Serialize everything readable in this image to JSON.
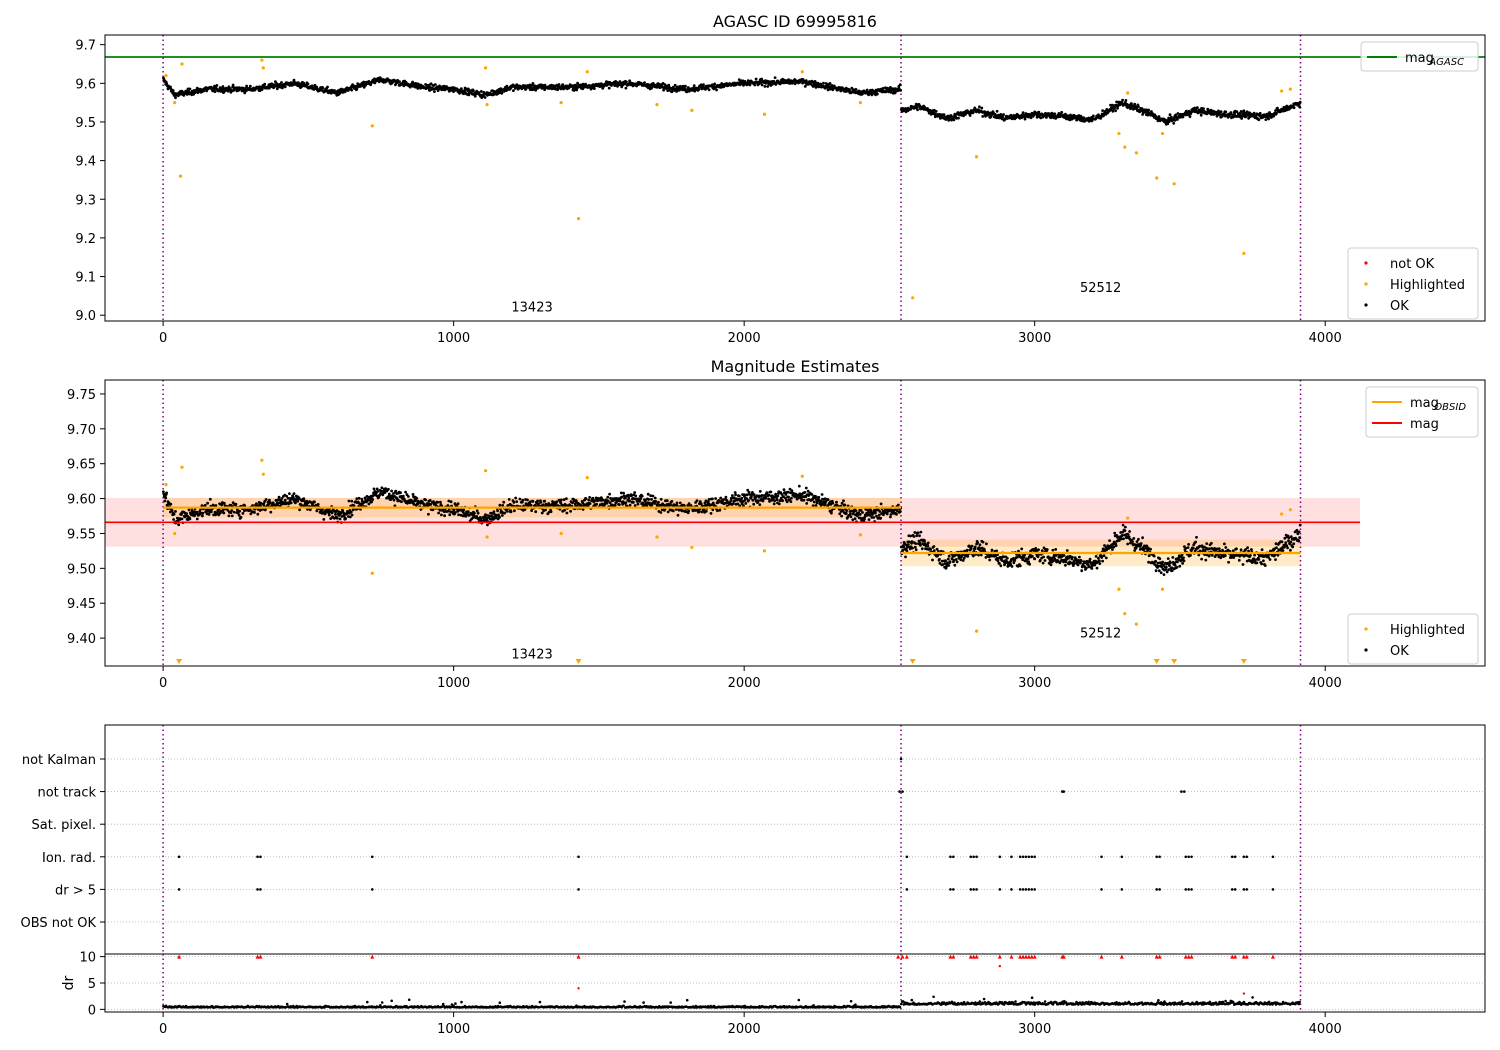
{
  "chart_data": [
    {
      "type": "scatter",
      "title": "AGASC ID 69995816",
      "xlim": [
        -200,
        4550
      ],
      "ylim": [
        8.985,
        9.725
      ],
      "xticks": [
        0,
        1000,
        2000,
        3000,
        4000
      ],
      "yticks": [
        9.0,
        9.1,
        9.2,
        9.3,
        9.4,
        9.5,
        9.6,
        9.7
      ],
      "ytick_decimals": 1,
      "grid": false,
      "legend_upper": {
        "placement": "upper-right",
        "entries": [
          {
            "label": "mag",
            "sub": "AGASC",
            "color": "#008000"
          }
        ]
      },
      "legend_lower": {
        "placement": "lower-right",
        "entries": [
          {
            "label": "not OK",
            "color": "#ff0000"
          },
          {
            "label": "Highlighted",
            "color": "#ffa500"
          },
          {
            "label": "OK",
            "color": "#000000"
          }
        ]
      },
      "obs_boundaries": [
        0,
        2540,
        3915
      ],
      "obs_labels": [
        {
          "text": "13423",
          "x": 1270,
          "y": 9.01
        },
        {
          "text": "52512",
          "x": 3227,
          "y": 9.06
        }
      ],
      "mag_agasc": 9.668,
      "ok_segments": [
        {
          "x0": 0,
          "x1": 2540,
          "wave": [
            [
              0,
              9.61
            ],
            [
              40,
              9.57
            ],
            [
              150,
              9.585
            ],
            [
              300,
              9.585
            ],
            [
              450,
              9.6
            ],
            [
              600,
              9.575
            ],
            [
              750,
              9.61
            ],
            [
              900,
              9.59
            ],
            [
              1000,
              9.585
            ],
            [
              1110,
              9.57
            ],
            [
              1200,
              9.59
            ],
            [
              1400,
              9.59
            ],
            [
              1600,
              9.6
            ],
            [
              1800,
              9.585
            ],
            [
              2000,
              9.6
            ],
            [
              2200,
              9.605
            ],
            [
              2400,
              9.575
            ],
            [
              2540,
              9.585
            ]
          ],
          "noise": 0.007
        },
        {
          "x0": 2540,
          "x1": 3915,
          "wave": [
            [
              2540,
              9.53
            ],
            [
              2600,
              9.54
            ],
            [
              2700,
              9.51
            ],
            [
              2800,
              9.53
            ],
            [
              2900,
              9.51
            ],
            [
              3000,
              9.52
            ],
            [
              3100,
              9.515
            ],
            [
              3200,
              9.505
            ],
            [
              3300,
              9.55
            ],
            [
              3400,
              9.52
            ],
            [
              3450,
              9.5
            ],
            [
              3550,
              9.53
            ],
            [
              3650,
              9.52
            ],
            [
              3800,
              9.515
            ],
            [
              3915,
              9.55
            ]
          ],
          "noise": 0.008
        }
      ],
      "highlighted": [
        [
          10,
          9.62
        ],
        [
          60,
          9.36
        ],
        [
          40,
          9.55
        ],
        [
          65,
          9.65
        ],
        [
          340,
          9.66
        ],
        [
          345,
          9.64
        ],
        [
          720,
          9.49
        ],
        [
          1110,
          9.64
        ],
        [
          1115,
          9.545
        ],
        [
          1430,
          9.25
        ],
        [
          1460,
          9.63
        ],
        [
          1370,
          9.55
        ],
        [
          1700,
          9.545
        ],
        [
          1820,
          9.53
        ],
        [
          2070,
          9.52
        ],
        [
          2200,
          9.63
        ],
        [
          2400,
          9.55
        ],
        [
          2580,
          9.045
        ],
        [
          2800,
          9.41
        ],
        [
          3290,
          9.47
        ],
        [
          3310,
          9.435
        ],
        [
          3320,
          9.575
        ],
        [
          3350,
          9.42
        ],
        [
          3420,
          9.355
        ],
        [
          3480,
          9.34
        ],
        [
          3440,
          9.47
        ],
        [
          3720,
          9.16
        ],
        [
          3850,
          9.58
        ],
        [
          3880,
          9.585
        ]
      ]
    },
    {
      "type": "scatter",
      "title": "Magnitude Estimates",
      "xlim": [
        -200,
        4550
      ],
      "ylim": [
        9.36,
        9.77
      ],
      "xticks": [
        0,
        1000,
        2000,
        3000,
        4000
      ],
      "yticks": [
        9.4,
        9.45,
        9.5,
        9.55,
        9.6,
        9.65,
        9.7,
        9.75
      ],
      "ytick_decimals": 2,
      "grid": false,
      "legend_upper": {
        "placement": "upper-right",
        "entries": [
          {
            "label": "mag",
            "sub": "OBSID",
            "color": "#ffa500"
          },
          {
            "label": "mag",
            "sub": "",
            "color": "#ff0000"
          }
        ]
      },
      "legend_lower": {
        "placement": "lower-right",
        "entries": [
          {
            "label": "Highlighted",
            "color": "#ffa500"
          },
          {
            "label": "OK",
            "color": "#000000"
          }
        ]
      },
      "obs_boundaries": [
        0,
        2540,
        3915
      ],
      "obs_labels": [
        {
          "text": "13423",
          "x": 1270,
          "y": 9.371
        },
        {
          "text": "52512",
          "x": 3227,
          "y": 9.401
        }
      ],
      "mag": {
        "value": 9.566,
        "band": [
          9.531,
          9.601
        ],
        "x0": -200,
        "x1": 4120
      },
      "mag_obsid": [
        {
          "x0": 0,
          "x1": 2540,
          "value": 9.587,
          "band": [
            9.573,
            9.601
          ]
        },
        {
          "x0": 2540,
          "x1": 3915,
          "value": 9.522,
          "band": [
            9.503,
            9.541
          ]
        }
      ],
      "ok_segments": [
        {
          "x0": 0,
          "x1": 2540,
          "wave": [
            [
              0,
              9.61
            ],
            [
              40,
              9.57
            ],
            [
              150,
              9.585
            ],
            [
              300,
              9.585
            ],
            [
              450,
              9.6
            ],
            [
              600,
              9.575
            ],
            [
              750,
              9.61
            ],
            [
              900,
              9.59
            ],
            [
              1000,
              9.585
            ],
            [
              1110,
              9.57
            ],
            [
              1200,
              9.59
            ],
            [
              1400,
              9.59
            ],
            [
              1600,
              9.6
            ],
            [
              1800,
              9.585
            ],
            [
              2000,
              9.6
            ],
            [
              2200,
              9.605
            ],
            [
              2400,
              9.575
            ],
            [
              2540,
              9.585
            ]
          ],
          "noise": 0.009
        },
        {
          "x0": 2540,
          "x1": 3915,
          "wave": [
            [
              2540,
              9.53
            ],
            [
              2600,
              9.54
            ],
            [
              2700,
              9.51
            ],
            [
              2800,
              9.53
            ],
            [
              2900,
              9.51
            ],
            [
              3000,
              9.52
            ],
            [
              3100,
              9.515
            ],
            [
              3200,
              9.505
            ],
            [
              3300,
              9.55
            ],
            [
              3400,
              9.52
            ],
            [
              3450,
              9.5
            ],
            [
              3550,
              9.53
            ],
            [
              3650,
              9.52
            ],
            [
              3800,
              9.515
            ],
            [
              3915,
              9.55
            ]
          ],
          "noise": 0.011
        }
      ],
      "highlighted": [
        [
          10,
          9.62
        ],
        [
          40,
          9.55
        ],
        [
          65,
          9.645
        ],
        [
          340,
          9.655
        ],
        [
          345,
          9.635
        ],
        [
          720,
          9.493
        ],
        [
          1110,
          9.64
        ],
        [
          1115,
          9.545
        ],
        [
          1460,
          9.63
        ],
        [
          1370,
          9.55
        ],
        [
          1700,
          9.545
        ],
        [
          1820,
          9.53
        ],
        [
          2070,
          9.525
        ],
        [
          2200,
          9.632
        ],
        [
          2400,
          9.548
        ],
        [
          2800,
          9.41
        ],
        [
          3290,
          9.47
        ],
        [
          3310,
          9.435
        ],
        [
          3320,
          9.572
        ],
        [
          3350,
          9.42
        ],
        [
          3440,
          9.47
        ],
        [
          3850,
          9.578
        ],
        [
          3880,
          9.584
        ]
      ],
      "off_scale_markers": [
        55,
        1430,
        2580,
        3420,
        3480,
        3720
      ]
    },
    {
      "type": "scatter",
      "title": "",
      "xlim": [
        -200,
        4550
      ],
      "xticks": [
        0,
        1000,
        2000,
        3000,
        4000
      ],
      "flag_labels": [
        "not Kalman",
        "not track",
        "Sat. pixel.",
        "Ion. rad.",
        "dr > 5",
        "OBS not OK"
      ],
      "obs_boundaries": [
        0,
        2540,
        3915
      ],
      "flags": {
        "not Kalman": [
          2540
        ],
        "not track": [
          2535,
          2545,
          3095,
          3100,
          3505,
          3515
        ],
        "Sat. pixel.": [],
        "Ion. rad.": [
          55,
          325,
          335,
          720,
          1430,
          2560,
          2710,
          2720,
          2780,
          2790,
          2800,
          2880,
          2920,
          2950,
          2960,
          2970,
          2980,
          2990,
          3000,
          3230,
          3300,
          3420,
          3430,
          3520,
          3530,
          3540,
          3680,
          3690,
          3720,
          3730,
          3820
        ],
        "dr > 5": [
          55,
          325,
          335,
          720,
          1430,
          2560,
          2710,
          2720,
          2780,
          2790,
          2800,
          2880,
          2920,
          2950,
          2960,
          2970,
          2980,
          2990,
          3000,
          3230,
          3300,
          3420,
          3430,
          3520,
          3530,
          3540,
          3680,
          3690,
          3720,
          3730,
          3820
        ],
        "OBS not OK": []
      },
      "dr": {
        "ylabel": "dr",
        "ylim": [
          -0.5,
          10.5
        ],
        "yticks": [
          0,
          5,
          10
        ],
        "low_segments": [
          {
            "x0": 0,
            "x1": 2540,
            "base": 0.35,
            "noise": 0.3
          },
          {
            "x0": 2540,
            "x1": 3915,
            "base": 0.9,
            "noise": 0.6
          }
        ],
        "red_clipped": [
          55,
          325,
          335,
          720,
          1430,
          2530,
          2545,
          2560,
          2710,
          2720,
          2780,
          2790,
          2800,
          2880,
          2920,
          2950,
          2960,
          2970,
          2980,
          2990,
          3000,
          3095,
          3100,
          3230,
          3300,
          3420,
          3430,
          3520,
          3530,
          3540,
          3680,
          3690,
          3720,
          3730,
          3820
        ],
        "red_points": [
          [
            1430,
            4.0
          ],
          [
            2880,
            8.2
          ],
          [
            3720,
            3.0
          ]
        ]
      }
    }
  ]
}
